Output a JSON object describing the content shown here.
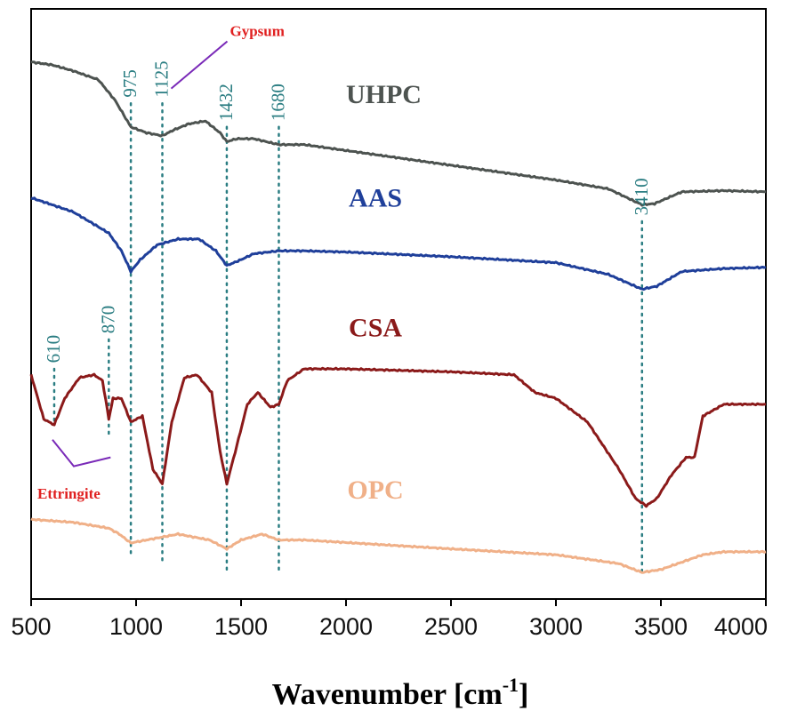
{
  "chart_data": {
    "type": "line",
    "xlabel": "Wavenumber [cm",
    "xlabel_sup": "-1",
    "xlabel_end": "]",
    "xlim": [
      500,
      4000
    ],
    "xticks": [
      500,
      1000,
      1500,
      2000,
      2500,
      3000,
      3500,
      4000
    ],
    "ylim": [
      0,
      1
    ],
    "yticks_shown": false,
    "series": [
      {
        "name": "UHPC",
        "color": "#4d5350",
        "points": [
          [
            500,
            0.91
          ],
          [
            600,
            0.905
          ],
          [
            700,
            0.895
          ],
          [
            820,
            0.88
          ],
          [
            900,
            0.845
          ],
          [
            975,
            0.8
          ],
          [
            1050,
            0.79
          ],
          [
            1125,
            0.785
          ],
          [
            1180,
            0.795
          ],
          [
            1250,
            0.805
          ],
          [
            1330,
            0.81
          ],
          [
            1400,
            0.79
          ],
          [
            1432,
            0.775
          ],
          [
            1480,
            0.78
          ],
          [
            1560,
            0.78
          ],
          [
            1620,
            0.775
          ],
          [
            1680,
            0.77
          ],
          [
            1800,
            0.77
          ],
          [
            2000,
            0.76
          ],
          [
            2500,
            0.735
          ],
          [
            3000,
            0.71
          ],
          [
            3250,
            0.695
          ],
          [
            3410,
            0.668
          ],
          [
            3470,
            0.67
          ],
          [
            3600,
            0.69
          ],
          [
            3800,
            0.692
          ],
          [
            4000,
            0.69
          ]
        ]
      },
      {
        "name": "AAS",
        "color": "#1f3f9a",
        "points": [
          [
            500,
            0.68
          ],
          [
            600,
            0.668
          ],
          [
            700,
            0.656
          ],
          [
            800,
            0.635
          ],
          [
            870,
            0.62
          ],
          [
            930,
            0.59
          ],
          [
            975,
            0.555
          ],
          [
            1020,
            0.575
          ],
          [
            1100,
            0.6
          ],
          [
            1200,
            0.61
          ],
          [
            1300,
            0.61
          ],
          [
            1380,
            0.59
          ],
          [
            1432,
            0.565
          ],
          [
            1500,
            0.575
          ],
          [
            1560,
            0.585
          ],
          [
            1680,
            0.59
          ],
          [
            1800,
            0.59
          ],
          [
            2000,
            0.588
          ],
          [
            2500,
            0.58
          ],
          [
            3000,
            0.57
          ],
          [
            3250,
            0.55
          ],
          [
            3410,
            0.525
          ],
          [
            3480,
            0.53
          ],
          [
            3600,
            0.555
          ],
          [
            3800,
            0.56
          ],
          [
            4000,
            0.562
          ]
        ]
      },
      {
        "name": "CSA",
        "color": "#8b1a1a",
        "points": [
          [
            500,
            0.38
          ],
          [
            560,
            0.305
          ],
          [
            610,
            0.295
          ],
          [
            660,
            0.34
          ],
          [
            730,
            0.375
          ],
          [
            800,
            0.38
          ],
          [
            840,
            0.37
          ],
          [
            870,
            0.305
          ],
          [
            890,
            0.34
          ],
          [
            930,
            0.34
          ],
          [
            975,
            0.3
          ],
          [
            1030,
            0.31
          ],
          [
            1080,
            0.22
          ],
          [
            1125,
            0.195
          ],
          [
            1170,
            0.3
          ],
          [
            1230,
            0.375
          ],
          [
            1290,
            0.38
          ],
          [
            1360,
            0.35
          ],
          [
            1400,
            0.25
          ],
          [
            1432,
            0.195
          ],
          [
            1480,
            0.26
          ],
          [
            1530,
            0.33
          ],
          [
            1580,
            0.35
          ],
          [
            1640,
            0.325
          ],
          [
            1680,
            0.33
          ],
          [
            1720,
            0.37
          ],
          [
            1800,
            0.39
          ],
          [
            2000,
            0.39
          ],
          [
            2500,
            0.385
          ],
          [
            2800,
            0.38
          ],
          [
            2900,
            0.35
          ],
          [
            3000,
            0.34
          ],
          [
            3150,
            0.3
          ],
          [
            3300,
            0.22
          ],
          [
            3380,
            0.17
          ],
          [
            3430,
            0.158
          ],
          [
            3480,
            0.17
          ],
          [
            3550,
            0.21
          ],
          [
            3620,
            0.24
          ],
          [
            3660,
            0.24
          ],
          [
            3700,
            0.31
          ],
          [
            3800,
            0.33
          ],
          [
            4000,
            0.33
          ]
        ]
      },
      {
        "name": "OPC",
        "color": "#f0b088",
        "points": [
          [
            500,
            0.135
          ],
          [
            700,
            0.13
          ],
          [
            870,
            0.12
          ],
          [
            920,
            0.11
          ],
          [
            975,
            0.095
          ],
          [
            1050,
            0.1
          ],
          [
            1125,
            0.105
          ],
          [
            1200,
            0.11
          ],
          [
            1350,
            0.1
          ],
          [
            1432,
            0.085
          ],
          [
            1500,
            0.1
          ],
          [
            1600,
            0.11
          ],
          [
            1680,
            0.1
          ],
          [
            1800,
            0.1
          ],
          [
            2500,
            0.085
          ],
          [
            3000,
            0.075
          ],
          [
            3300,
            0.06
          ],
          [
            3410,
            0.045
          ],
          [
            3500,
            0.05
          ],
          [
            3700,
            0.075
          ],
          [
            3800,
            0.08
          ],
          [
            4000,
            0.08
          ]
        ]
      }
    ],
    "series_labels": [
      {
        "text": "UHPC",
        "x": 2180,
        "y": 0.84
      },
      {
        "text": "AAS",
        "x": 2140,
        "y": 0.665
      },
      {
        "text": "CSA",
        "x": 2140,
        "y": 0.445
      },
      {
        "text": "OPC",
        "x": 2140,
        "y": 0.17
      }
    ],
    "reference_lines": [
      {
        "x": 975,
        "label": "975"
      },
      {
        "x": 1125,
        "label": "1125"
      },
      {
        "x": 1432,
        "label": "1432"
      },
      {
        "x": 1680,
        "label": "1680"
      },
      {
        "x": 3410,
        "label": "3410"
      },
      {
        "x": 870,
        "label": "870"
      },
      {
        "x": 610,
        "label": "610"
      }
    ],
    "annotations": [
      {
        "text": "Gypsum",
        "points_to": 1125
      },
      {
        "text": "Ettringite",
        "points_to": [
          610,
          870
        ]
      }
    ]
  }
}
